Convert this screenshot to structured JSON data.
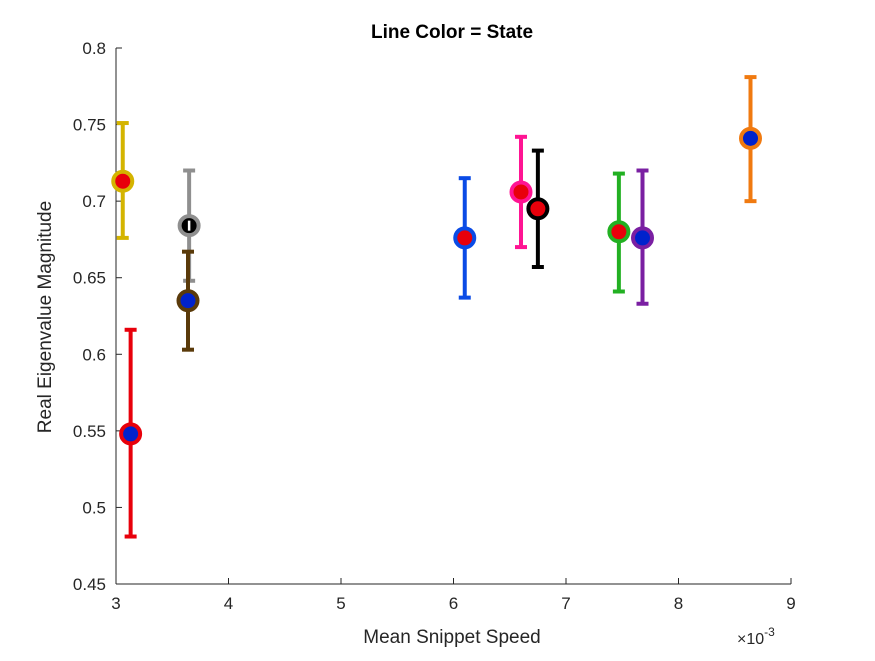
{
  "chart_data": {
    "type": "scatter",
    "title": "Line Color = State",
    "xlabel": "Mean Snippet Speed",
    "ylabel": "Real Eigenvalue Magnitude",
    "x_exponent_label": "×10",
    "x_exponent_power": "-3",
    "xlim": [
      3,
      9
    ],
    "ylim": [
      0.45,
      0.8
    ],
    "x_scale_note": "x values shown in units of 10^-3",
    "x_ticks": [
      "3",
      "4",
      "5",
      "6",
      "7",
      "8",
      "9"
    ],
    "y_ticks": [
      "0.45",
      "0.5",
      "0.55",
      "0.6",
      "0.65",
      "0.7",
      "0.75",
      "0.8"
    ],
    "grid": false,
    "legend": "none",
    "points": [
      {
        "x": 3.06,
        "y": 0.713,
        "err_low": 0.676,
        "err_high": 0.751,
        "line_color": "#d4b400",
        "fill_color": "#e8000b",
        "bar_color": "#e8000b"
      },
      {
        "x": 3.13,
        "y": 0.548,
        "err_low": 0.481,
        "err_high": 0.616,
        "line_color": "#e8000b",
        "fill_color": "#0022cc",
        "bar_color": "#0022cc"
      },
      {
        "x": 3.65,
        "y": 0.684,
        "err_low": 0.648,
        "err_high": 0.72,
        "line_color": "#8f8f8f",
        "fill_color": "#000000",
        "bar_color": "#ffffff"
      },
      {
        "x": 3.64,
        "y": 0.635,
        "err_low": 0.603,
        "err_high": 0.667,
        "line_color": "#5a3a0a",
        "fill_color": "#0022cc",
        "bar_color": "#0022cc"
      },
      {
        "x": 6.1,
        "y": 0.676,
        "err_low": 0.637,
        "err_high": 0.715,
        "line_color": "#0a4be6",
        "fill_color": "#e8000b",
        "bar_color": "#e8000b"
      },
      {
        "x": 6.6,
        "y": 0.706,
        "err_low": 0.67,
        "err_high": 0.742,
        "line_color": "#ff1493",
        "fill_color": "#e8000b",
        "bar_color": "#e8000b"
      },
      {
        "x": 6.75,
        "y": 0.695,
        "err_low": 0.657,
        "err_high": 0.733,
        "line_color": "#000000",
        "fill_color": "#e8000b",
        "bar_color": "#e8000b"
      },
      {
        "x": 7.47,
        "y": 0.68,
        "err_low": 0.641,
        "err_high": 0.718,
        "line_color": "#22b022",
        "fill_color": "#e8000b",
        "bar_color": "#e8000b"
      },
      {
        "x": 7.68,
        "y": 0.676,
        "err_low": 0.633,
        "err_high": 0.72,
        "line_color": "#7a1fa2",
        "fill_color": "#0022cc",
        "bar_color": "#0022cc"
      },
      {
        "x": 8.64,
        "y": 0.741,
        "err_low": 0.7,
        "err_high": 0.781,
        "line_color": "#f07a10",
        "fill_color": "#0022cc",
        "bar_color": "#0022cc"
      }
    ]
  }
}
